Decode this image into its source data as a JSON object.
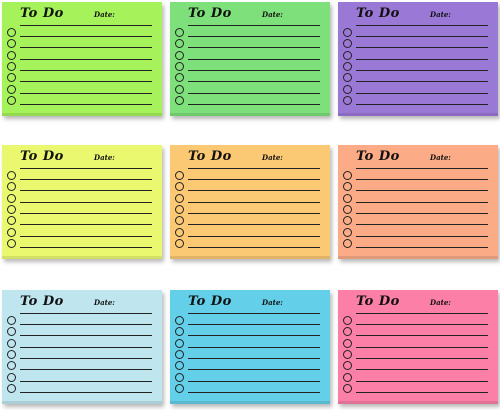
{
  "pad_text": {
    "title": "To Do",
    "date_label": "Date:"
  },
  "pads": [
    {
      "color": "#a6f25a",
      "rows": 7
    },
    {
      "color": "#7ee07a",
      "rows": 7
    },
    {
      "color": "#9a78d6",
      "rows": 7
    },
    {
      "color": "#eaf870",
      "rows": 7
    },
    {
      "color": "#fbc873",
      "rows": 7
    },
    {
      "color": "#fbac87",
      "rows": 7
    },
    {
      "color": "#bfe6ef",
      "rows": 7
    },
    {
      "color": "#63cfe8",
      "rows": 7
    },
    {
      "color": "#fb7fa7",
      "rows": 7
    }
  ]
}
